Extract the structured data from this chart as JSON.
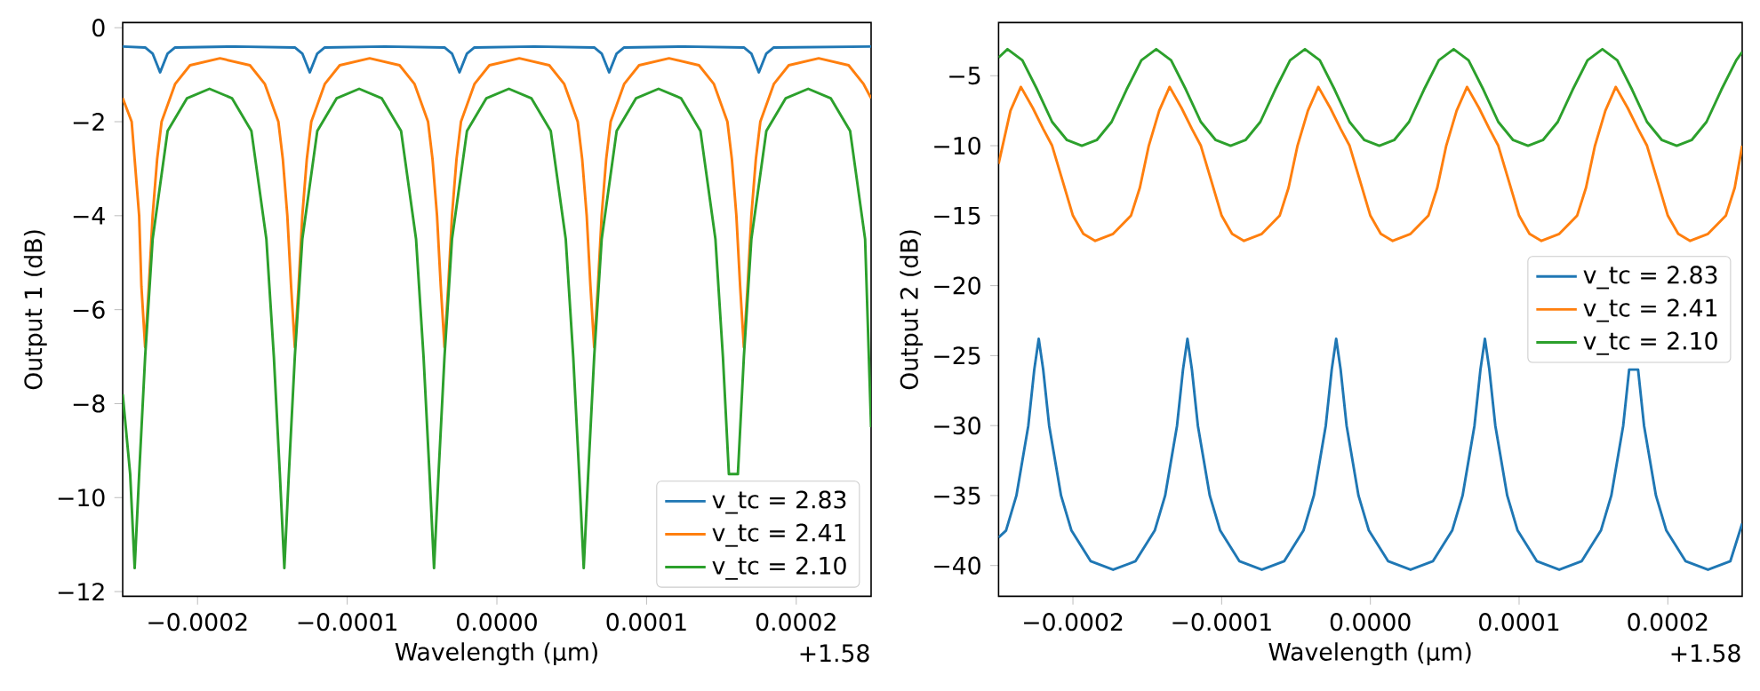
{
  "chart_data": [
    {
      "type": "line",
      "xlabel": "Wavelength (µm)",
      "ylabel": "Output 1 (dB)",
      "annotations": [
        "+1.58"
      ],
      "legend": "bottom right",
      "xlim": [
        -0.00025,
        0.00025
      ],
      "ylim": [
        -12.1,
        0.11
      ],
      "xticks": [
        {
          "value": -0.0002,
          "label": "−0.0002"
        },
        {
          "value": -0.0001,
          "label": "−0.0001"
        },
        {
          "value": 0,
          "label": "0.0000"
        },
        {
          "value": 0.0001,
          "label": "0.0001"
        },
        {
          "value": 0.0002,
          "label": "0.0002"
        }
      ],
      "yticks": [
        {
          "value": -12,
          "label": "−12"
        },
        {
          "value": -10,
          "label": "−10"
        },
        {
          "value": -8,
          "label": "−8"
        },
        {
          "value": -6,
          "label": "−6"
        },
        {
          "value": -4,
          "label": "−4"
        },
        {
          "value": -2,
          "label": "−2"
        },
        0
      ],
      "series": [
        {
          "name": "v_tc = 2.83",
          "color": "#1f77b4",
          "x": [
            -0.00025,
            -0.000235,
            -0.00023,
            -0.000225,
            -0.00022,
            -0.000215,
            -0.000175,
            -0.000135,
            -0.00013,
            -0.000125,
            -0.00012,
            -0.000115,
            -7.5e-05,
            -3.5e-05,
            -3e-05,
            -2.5e-05,
            -2e-05,
            -1.5e-05,
            2.5e-05,
            6.5e-05,
            7e-05,
            7.5e-05,
            8e-05,
            8.5e-05,
            0.000125,
            0.000165,
            0.00017,
            0.000175,
            0.00018,
            0.000185,
            0.00025
          ],
          "values": [
            -0.4,
            -0.42,
            -0.55,
            -0.95,
            -0.55,
            -0.42,
            -0.4,
            -0.42,
            -0.55,
            -0.95,
            -0.55,
            -0.42,
            -0.4,
            -0.42,
            -0.55,
            -0.95,
            -0.55,
            -0.42,
            -0.4,
            -0.42,
            -0.55,
            -0.95,
            -0.55,
            -0.42,
            -0.4,
            -0.42,
            -0.55,
            -0.95,
            -0.55,
            -0.42,
            -0.4
          ]
        },
        {
          "name": "v_tc = 2.41",
          "color": "#ff7f0e",
          "x": [
            -0.00025,
            -0.000244,
            -0.000242,
            -0.000239,
            -0.0002375,
            -0.000235,
            -0.0002325,
            -0.00023,
            -0.000227,
            -0.000224,
            -0.000215,
            -0.000205,
            -0.000185,
            -0.000165,
            -0.000155,
            -0.000146,
            -0.000143,
            -0.00014,
            -0.0001375,
            -0.000135,
            -0.0001325,
            -0.00013,
            -0.000127,
            -0.000124,
            -0.000115,
            -0.000105,
            -8.5e-05,
            -6.5e-05,
            -5.5e-05,
            -4.6e-05,
            -4.3e-05,
            -4e-05,
            -3.75e-05,
            -3.5e-05,
            -3.25e-05,
            -3e-05,
            -2.7e-05,
            -2.4e-05,
            -1.5e-05,
            -5e-06,
            1.5e-05,
            3.5e-05,
            4.5e-05,
            5.4e-05,
            5.7e-05,
            6e-05,
            6.25e-05,
            6.5e-05,
            6.75e-05,
            7e-05,
            7.3e-05,
            7.6e-05,
            8.5e-05,
            9.5e-05,
            0.000115,
            0.000135,
            0.000145,
            0.000154,
            0.000157,
            0.00016,
            0.0001625,
            0.000165,
            0.0001675,
            0.00017,
            0.000173,
            0.000176,
            0.000185,
            0.000195,
            0.000215,
            0.000235,
            0.000245,
            0.00025
          ],
          "values": [
            -1.5,
            -2.0,
            -2.8,
            -4,
            -5.5,
            -6.8,
            -5.5,
            -4,
            -2.8,
            -2,
            -1.2,
            -0.8,
            -0.65,
            -0.8,
            -1.2,
            -2,
            -2.8,
            -4,
            -5.5,
            -6.8,
            -5.5,
            -4,
            -2.8,
            -2,
            -1.2,
            -0.8,
            -0.65,
            -0.8,
            -1.2,
            -2,
            -2.8,
            -4,
            -5.5,
            -6.8,
            -5.5,
            -4,
            -2.8,
            -2,
            -1.2,
            -0.8,
            -0.65,
            -0.8,
            -1.2,
            -2,
            -2.8,
            -4,
            -5.5,
            -6.8,
            -5.5,
            -4,
            -2.8,
            -2,
            -1.2,
            -0.8,
            -0.65,
            -0.8,
            -1.2,
            -2,
            -2.8,
            -4,
            -5.5,
            -6.8,
            -5.5,
            -4,
            -2.8,
            -2,
            -1.2,
            -0.8,
            -0.65,
            -0.8,
            -1.2,
            -1.5
          ]
        },
        {
          "name": "v_tc = 2.10",
          "color": "#2ca02c",
          "x": [
            -0.00025,
            -0.000245,
            -0.000242,
            -0.000239,
            -0.000235,
            -0.00023,
            -0.00022,
            -0.000207,
            -0.000192,
            -0.000177,
            -0.000164,
            -0.000154,
            -0.000149,
            -0.000145,
            -0.000142,
            -0.000139,
            -0.000135,
            -0.00013,
            -0.00012,
            -0.000107,
            -9.2e-05,
            -7.7e-05,
            -6.4e-05,
            -5.4e-05,
            -4.9e-05,
            -4.5e-05,
            -4.2e-05,
            -3.9e-05,
            -3.5e-05,
            -3e-05,
            -2e-05,
            -7e-06,
            8e-06,
            2.3e-05,
            3.6e-05,
            4.6e-05,
            5.1e-05,
            5.5e-05,
            5.8e-05,
            6.1e-05,
            6.5e-05,
            7e-05,
            8e-05,
            9.3e-05,
            0.000108,
            0.000123,
            0.000136,
            0.000146,
            0.000151,
            0.000155,
            0.000158,
            0.000161,
            0.000165,
            0.00017,
            0.00018,
            0.000193,
            0.000208,
            0.000223,
            0.000236,
            0.000246,
            0.00025
          ],
          "values": [
            -7.8,
            -9.5,
            -11.5,
            -9.5,
            -7,
            -4.5,
            -2.2,
            -1.5,
            -1.3,
            -1.5,
            -2.2,
            -4.5,
            -7,
            -9.5,
            -11.5,
            -9.5,
            -7,
            -4.5,
            -2.2,
            -1.5,
            -1.3,
            -1.5,
            -2.2,
            -4.5,
            -7,
            -9.5,
            -11.5,
            -9.5,
            -7,
            -4.5,
            -2.2,
            -1.5,
            -1.3,
            -1.5,
            -2.2,
            -4.5,
            -7,
            -9.5,
            -11.5,
            -9.5,
            -7,
            -4.5,
            -2.2,
            -1.5,
            -1.3,
            -1.5,
            -2.2,
            -4.5,
            -7,
            -9.5,
            null,
            -9.5,
            -7,
            -4.5,
            -2.2,
            -1.5,
            -1.3,
            -1.5,
            -2.2,
            -4.5,
            -8.5
          ]
        }
      ]
    },
    {
      "type": "line",
      "xlabel": "Wavelength (µm)",
      "ylabel": "Output 2 (dB)",
      "annotations": [
        "+1.58"
      ],
      "legend": "right",
      "xlim": [
        -0.00025,
        0.00025
      ],
      "ylim": [
        -42.2,
        -1.2
      ],
      "xticks": [
        {
          "value": -0.0002,
          "label": "−0.0002"
        },
        {
          "value": -0.0001,
          "label": "−0.0001"
        },
        {
          "value": 0,
          "label": "0.0000"
        },
        {
          "value": 0.0001,
          "label": "0.0001"
        },
        {
          "value": 0.0002,
          "label": "0.0002"
        }
      ],
      "yticks": [
        {
          "value": -40,
          "label": "−40"
        },
        {
          "value": -35,
          "label": "−35"
        },
        {
          "value": -30,
          "label": "−30"
        },
        {
          "value": -25,
          "label": "−25"
        },
        {
          "value": -20,
          "label": "−20"
        },
        {
          "value": -15,
          "label": "−15"
        },
        {
          "value": -10,
          "label": "−10"
        },
        {
          "value": -5,
          "label": "−5"
        }
      ],
      "series": [
        {
          "name": "v_tc = 2.83",
          "color": "#1f77b4",
          "x": [
            -0.00025,
            -0.000245,
            -0.000238,
            -0.00023,
            -0.000226,
            -0.000223,
            -0.00022,
            -0.000216,
            -0.000208,
            -0.000201,
            -0.000188,
            -0.000173,
            -0.000158,
            -0.000145,
            -0.000138,
            -0.00013,
            -0.000126,
            -0.000123,
            -0.00012,
            -0.000116,
            -0.000108,
            -0.000101,
            -8.8e-05,
            -7.3e-05,
            -5.8e-05,
            -4.5e-05,
            -3.8e-05,
            -3e-05,
            -2.6e-05,
            -2.3e-05,
            -2e-05,
            -1.6e-05,
            -8e-06,
            -1e-06,
            1.2e-05,
            2.7e-05,
            4.2e-05,
            5.5e-05,
            6.2e-05,
            7e-05,
            7.4e-05,
            7.7e-05,
            8e-05,
            8.4e-05,
            9.2e-05,
            9.9e-05,
            0.000112,
            0.000127,
            0.000142,
            0.000155,
            0.000162,
            0.00017,
            0.000174,
            0.000177,
            0.00018,
            0.000184,
            0.000192,
            0.000199,
            0.000212,
            0.000227,
            0.000242,
            0.00025
          ],
          "values": [
            -38,
            -37.5,
            -35,
            -30,
            -26,
            -23.8,
            -26,
            -30,
            -35,
            -37.5,
            -39.7,
            -40.3,
            -39.7,
            -37.5,
            -35,
            -30,
            -26,
            -23.8,
            -26,
            -30,
            -35,
            -37.5,
            -39.7,
            -40.3,
            -39.7,
            -37.5,
            -35,
            -30,
            -26,
            -23.8,
            -26,
            -30,
            -35,
            -37.5,
            -39.7,
            -40.3,
            -39.7,
            -37.5,
            -35,
            -30,
            -26,
            -23.8,
            -26,
            -30,
            -35,
            -37.5,
            -39.7,
            -40.3,
            -39.7,
            -37.5,
            -35,
            -30,
            -26,
            null,
            -26,
            -30,
            -35,
            -37.5,
            -39.7,
            -40.3,
            -39.7,
            -37
          ]
        },
        {
          "name": "v_tc = 2.41",
          "color": "#ff7f0e",
          "x": [
            -0.00025,
            -0.000242,
            -0.000235,
            -0.000227,
            -0.00022,
            -0.000214,
            -0.000207,
            -0.0002,
            -0.000193,
            -0.000185,
            -0.000173,
            -0.000161,
            -0.000155,
            -0.000149,
            -0.000142,
            -0.000135,
            -0.000127,
            -0.00012,
            -0.000114,
            -0.000107,
            -0.0001,
            -9.3e-05,
            -8.5e-05,
            -7.3e-05,
            -6.1e-05,
            -5.5e-05,
            -4.9e-05,
            -4.2e-05,
            -3.5e-05,
            -2.7e-05,
            -2e-05,
            -1.4e-05,
            -7e-06,
            0,
            7e-06,
            1.5e-05,
            2.7e-05,
            3.9e-05,
            4.5e-05,
            5.1e-05,
            5.8e-05,
            6.5e-05,
            7.3e-05,
            8e-05,
            8.6e-05,
            9.3e-05,
            0.0001,
            0.000107,
            0.000115,
            0.000127,
            0.000139,
            0.000145,
            0.000151,
            0.000158,
            0.000165,
            0.000173,
            0.00018,
            0.000186,
            0.000193,
            0.0002,
            0.000207,
            0.000215,
            0.000227,
            0.000239,
            0.000245,
            0.00025
          ],
          "values": [
            -11.3,
            -7.5,
            -5.8,
            -7.3,
            -8.8,
            -10,
            -12.5,
            -15,
            -16.3,
            -16.8,
            -16.3,
            -15,
            -13,
            -10,
            -7.5,
            -5.8,
            -7.3,
            -8.8,
            -10,
            -12.5,
            -15,
            -16.3,
            -16.8,
            -16.3,
            -15,
            -13,
            -10,
            -7.5,
            -5.8,
            -7.3,
            -8.8,
            -10,
            -12.5,
            -15,
            -16.3,
            -16.8,
            -16.3,
            -15,
            -13,
            -10,
            -7.5,
            -5.8,
            -7.3,
            -8.8,
            -10,
            -12.5,
            -15,
            -16.3,
            -16.8,
            -16.3,
            -15,
            -13,
            -10,
            -7.5,
            -5.8,
            -7.3,
            -8.8,
            -10,
            -12.5,
            -15,
            -16.3,
            -16.8,
            -16.3,
            -15,
            -13,
            -10
          ]
        },
        {
          "name": "v_tc = 2.10",
          "color": "#2ca02c",
          "x": [
            -0.00025,
            -0.000244,
            -0.000234,
            -0.000224,
            -0.000214,
            -0.000204,
            -0.000194,
            -0.000184,
            -0.000174,
            -0.000164,
            -0.000154,
            -0.000144,
            -0.000134,
            -0.000124,
            -0.000114,
            -0.000104,
            -9.4e-05,
            -8.4e-05,
            -7.4e-05,
            -6.4e-05,
            -5.4e-05,
            -4.4e-05,
            -3.4e-05,
            -2.4e-05,
            -1.4e-05,
            -4e-06,
            6e-06,
            1.6e-05,
            2.6e-05,
            3.6e-05,
            4.6e-05,
            5.6e-05,
            6.6e-05,
            7.6e-05,
            8.6e-05,
            9.6e-05,
            0.000106,
            0.000116,
            0.000126,
            0.000136,
            0.000146,
            0.000156,
            0.000166,
            0.000176,
            0.000186,
            0.000196,
            0.000206,
            0.000216,
            0.000226,
            0.000236,
            0.000246,
            0.00025
          ],
          "values": [
            -3.7,
            -3.1,
            -3.9,
            -6,
            -8.3,
            -9.6,
            -10,
            -9.6,
            -8.3,
            -6,
            -3.9,
            -3.1,
            -3.9,
            -6,
            -8.3,
            -9.6,
            -10,
            -9.6,
            -8.3,
            -6,
            -3.9,
            -3.1,
            -3.9,
            -6,
            -8.3,
            -9.6,
            -10,
            -9.6,
            -8.3,
            -6,
            -3.9,
            -3.1,
            -3.9,
            -6,
            -8.3,
            -9.6,
            -10,
            -9.6,
            -8.3,
            -6,
            -3.9,
            -3.1,
            -3.9,
            -6,
            -8.3,
            -9.6,
            -10,
            -9.6,
            -8.3,
            -6,
            -3.9,
            -3.3
          ]
        }
      ]
    }
  ]
}
